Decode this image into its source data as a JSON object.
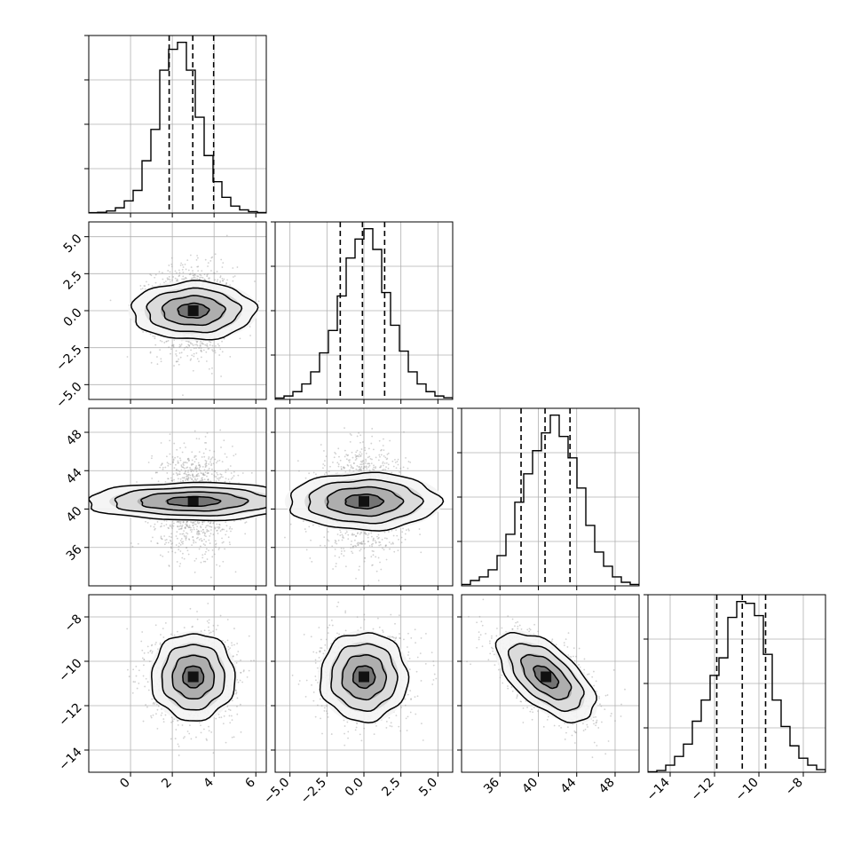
{
  "chart_data": {
    "type": "corner",
    "parameters": [
      {
        "range": [
          -2.0,
          6.5
        ],
        "ticks": [
          0,
          2,
          4,
          6
        ],
        "tick_labels": [
          "0",
          "2",
          "4",
          "6"
        ],
        "mean": 3.0,
        "sigma": 0.98,
        "quantiles": [
          1.85,
          2.98,
          3.98
        ],
        "hist": [
          0.002,
          0.004,
          0.012,
          0.03,
          0.07,
          0.13,
          0.3,
          0.48,
          0.82,
          0.94,
          0.98,
          0.82,
          0.55,
          0.33,
          0.18,
          0.09,
          0.04,
          0.018,
          0.008,
          0.003
        ]
      },
      {
        "range": [
          -6.0,
          6.0
        ],
        "ticks": [
          -5.0,
          -2.5,
          0.0,
          2.5,
          5.0
        ],
        "tick_labels": [
          "−5.0",
          "−2.5",
          "0.0",
          "2.5",
          "5.0"
        ],
        "mean": 0.0,
        "sigma": 1.48,
        "quantiles": [
          -1.6,
          -0.1,
          1.4
        ],
        "hist": [
          0.008,
          0.02,
          0.045,
          0.09,
          0.16,
          0.27,
          0.4,
          0.6,
          0.82,
          0.93,
          0.99,
          0.87,
          0.62,
          0.43,
          0.28,
          0.16,
          0.09,
          0.045,
          0.02,
          0.01
        ]
      },
      {
        "range": [
          32.0,
          50.5
        ],
        "ticks": [
          36,
          40,
          44,
          48
        ],
        "tick_labels": [
          "36",
          "40",
          "44",
          "48"
        ],
        "mean": 40.8,
        "sigma": 2.55,
        "quantiles": [
          38.2,
          40.7,
          43.3
        ],
        "hist": [
          0.008,
          0.03,
          0.05,
          0.09,
          0.17,
          0.29,
          0.47,
          0.63,
          0.76,
          0.86,
          0.96,
          0.84,
          0.72,
          0.55,
          0.34,
          0.19,
          0.11,
          0.05,
          0.02,
          0.008
        ]
      },
      {
        "range": [
          -15.0,
          -7.0
        ],
        "ticks": [
          -14,
          -12,
          -10,
          -8
        ],
        "tick_labels": [
          "−14",
          "−12",
          "−10",
          "−8"
        ],
        "mean": -10.7,
        "sigma": 1.0,
        "quantiles": [
          -11.9,
          -10.75,
          -9.7
        ],
        "hist": [
          0.003,
          0.01,
          0.04,
          0.09,
          0.16,
          0.29,
          0.41,
          0.55,
          0.65,
          0.88,
          0.97,
          0.96,
          0.89,
          0.67,
          0.41,
          0.26,
          0.15,
          0.08,
          0.04,
          0.015
        ]
      }
    ],
    "correlations": [
      [
        1.0,
        0.0,
        0.0,
        0.0
      ],
      [
        0.0,
        1.0,
        0.0,
        0.0
      ],
      [
        0.0,
        0.0,
        1.0,
        -0.6
      ],
      [
        0.0,
        0.0,
        -0.6,
        1.0
      ]
    ],
    "contour_levels_sigma": [
      0.5,
      1.0,
      1.5,
      2.0
    ],
    "grid": true,
    "xlabel": "",
    "ylabel": "",
    "title": ""
  }
}
